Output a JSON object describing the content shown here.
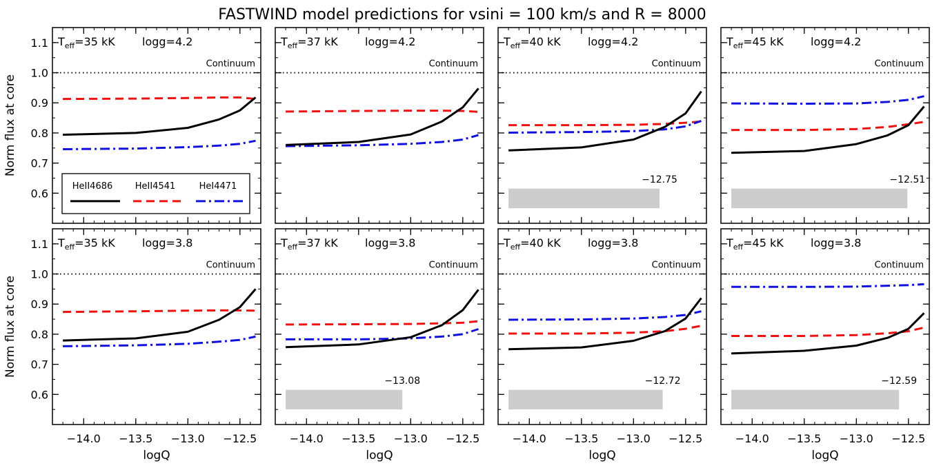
{
  "title": "FASTWIND model predictions for vsini = 100 km/s and R = 8000",
  "colors": {
    "heii4686": "#000000",
    "heii4541": "#ee1111",
    "hei4471": "#1111dd",
    "shade": "#cccccc"
  },
  "chart_data": {
    "type": "line",
    "title": "FASTWIND model predictions for vsini = 100 km/s and R = 8000",
    "xlabel": "logQ",
    "ylabel": "Norm flux at core",
    "xlim": [
      -14.3,
      -12.3
    ],
    "ylim": [
      0.5,
      1.15
    ],
    "xticks": [
      -14.0,
      -13.5,
      -13.0,
      -12.5
    ],
    "xtick_labels": [
      "−14.0",
      "−13.5",
      "−13.0",
      "−12.5"
    ],
    "yticks": [
      0.6,
      0.7,
      0.8,
      0.9,
      1.0,
      1.1
    ],
    "ytick_labels": [
      "0.6",
      "0.7",
      "0.8",
      "0.9",
      "1.0",
      "1.1"
    ],
    "continuum": {
      "y": 1.0,
      "label": "Continuum"
    },
    "x": [
      -14.2,
      -13.5,
      -13.0,
      -12.7,
      -12.5,
      -12.35
    ],
    "legend": {
      "panel": 0,
      "entries": [
        {
          "series": "heii4686",
          "label": "HeII4686"
        },
        {
          "series": "heii4541",
          "label": "HeII4541"
        },
        {
          "series": "hei4471",
          "label": "HeI4471"
        }
      ]
    },
    "panels": [
      {
        "teff": "35 kK",
        "logg": "logg=4.2",
        "series": {
          "heii4686": [
            0.794,
            0.8,
            0.817,
            0.845,
            0.875,
            0.918
          ],
          "heii4541": [
            0.913,
            0.914,
            0.916,
            0.918,
            0.918,
            0.913
          ],
          "hei4471": [
            0.746,
            0.748,
            0.753,
            0.758,
            0.764,
            0.774
          ]
        },
        "shade": null
      },
      {
        "teff": "37 kK",
        "logg": "logg=4.2",
        "series": {
          "heii4686": [
            0.76,
            0.77,
            0.795,
            0.838,
            0.885,
            0.948
          ],
          "heii4541": [
            0.871,
            0.873,
            0.874,
            0.874,
            0.873,
            0.87
          ],
          "hei4471": [
            0.756,
            0.759,
            0.764,
            0.77,
            0.778,
            0.793
          ]
        },
        "shade": null
      },
      {
        "teff": "40 kK",
        "logg": "logg=4.2",
        "series": {
          "heii4686": [
            0.742,
            0.752,
            0.778,
            0.82,
            0.865,
            0.938
          ],
          "heii4541": [
            0.826,
            0.826,
            0.827,
            0.83,
            0.834,
            0.838
          ],
          "hei4471": [
            0.801,
            0.803,
            0.806,
            0.812,
            0.822,
            0.84
          ]
        },
        "shade": {
          "x_end": -12.75,
          "y_range": [
            0.55,
            0.615
          ],
          "label": "−12.75"
        }
      },
      {
        "teff": "45 kK",
        "logg": "logg=4.2",
        "series": {
          "heii4686": [
            0.734,
            0.74,
            0.763,
            0.792,
            0.826,
            0.888
          ],
          "heii4541": [
            0.81,
            0.81,
            0.813,
            0.82,
            0.829,
            0.837
          ],
          "hei4471": [
            0.898,
            0.897,
            0.898,
            0.903,
            0.91,
            0.922
          ]
        },
        "shade": {
          "x_end": -12.51,
          "y_range": [
            0.55,
            0.615
          ],
          "label": "−12.51"
        }
      },
      {
        "teff": "35 kK",
        "logg": "logg=3.8",
        "series": {
          "heii4686": [
            0.779,
            0.786,
            0.808,
            0.848,
            0.89,
            0.95
          ],
          "heii4541": [
            0.874,
            0.876,
            0.878,
            0.879,
            0.879,
            0.878
          ],
          "hei4471": [
            0.76,
            0.763,
            0.768,
            0.775,
            0.781,
            0.792
          ]
        },
        "shade": null
      },
      {
        "teff": "37 kK",
        "logg": "logg=3.8",
        "series": {
          "heii4686": [
            0.757,
            0.766,
            0.79,
            0.83,
            0.88,
            0.948
          ],
          "heii4541": [
            0.832,
            0.833,
            0.834,
            0.836,
            0.838,
            0.843
          ],
          "hei4471": [
            0.783,
            0.783,
            0.786,
            0.792,
            0.8,
            0.817
          ]
        },
        "shade": {
          "x_end": -13.08,
          "y_range": [
            0.55,
            0.615
          ],
          "label": "−13.08"
        }
      },
      {
        "teff": "40 kK",
        "logg": "logg=3.8",
        "series": {
          "heii4686": [
            0.75,
            0.756,
            0.778,
            0.81,
            0.852,
            0.92
          ],
          "heii4541": [
            0.802,
            0.802,
            0.805,
            0.81,
            0.818,
            0.828
          ],
          "hei4471": [
            0.848,
            0.849,
            0.852,
            0.857,
            0.864,
            0.876
          ]
        },
        "shade": {
          "x_end": -12.72,
          "y_range": [
            0.55,
            0.615
          ],
          "label": "−12.72"
        }
      },
      {
        "teff": "45 kK",
        "logg": "logg=3.8",
        "series": {
          "heii4686": [
            0.736,
            0.745,
            0.762,
            0.788,
            0.818,
            0.87
          ],
          "heii4541": [
            0.794,
            0.794,
            0.797,
            0.803,
            0.81,
            0.822
          ],
          "hei4471": [
            0.957,
            0.957,
            0.958,
            0.961,
            0.963,
            0.966
          ]
        },
        "shade": {
          "x_end": -12.59,
          "y_range": [
            0.55,
            0.615
          ],
          "label": "−12.59"
        }
      }
    ]
  }
}
